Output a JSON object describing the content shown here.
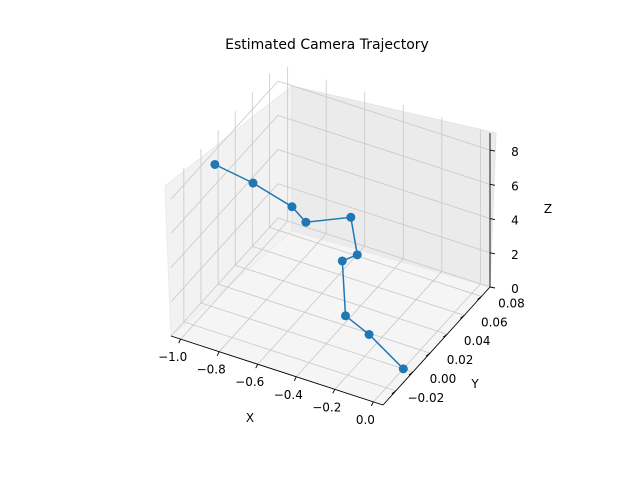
{
  "chart_data": {
    "type": "line",
    "projection": "3d",
    "title": "Estimated Camera Trajectory",
    "xlabel": "X",
    "ylabel": "Y",
    "zlabel": "Z",
    "xlim": [
      -1.05,
      0.05
    ],
    "ylim": [
      -0.035,
      0.09
    ],
    "zlim": [
      0,
      9
    ],
    "grid": true,
    "xticks": [
      "−1.0",
      "−0.8",
      "−0.6",
      "−0.4",
      "−0.2",
      "0.0"
    ],
    "yticks": [
      "−0.02",
      "0.00",
      "0.02",
      "0.04",
      "0.06",
      "0.08"
    ],
    "zticks": [
      "0",
      "2",
      "4",
      "6",
      "8"
    ],
    "series": [
      {
        "color": "#1f77b4",
        "marker": "circle",
        "points": [
          {
            "x": 0.0,
            "y": 0.0,
            "z": 0.0
          },
          {
            "x": -0.2,
            "y": 0.005,
            "z": 1.0
          },
          {
            "x": -0.3,
            "y": 0.0,
            "z": 2.0
          },
          {
            "x": -0.45,
            "y": 0.03,
            "z": 3.0
          },
          {
            "x": -0.35,
            "y": 0.025,
            "z": 4.0
          },
          {
            "x": -0.45,
            "y": 0.04,
            "z": 5.0
          },
          {
            "x": -0.55,
            "y": 0.01,
            "z": 6.0
          },
          {
            "x": -0.6,
            "y": 0.005,
            "z": 7.0
          },
          {
            "x": -0.78,
            "y": 0.0,
            "z": 8.0
          },
          {
            "x": -1.0,
            "y": 0.005,
            "z": 8.0
          }
        ]
      }
    ]
  }
}
